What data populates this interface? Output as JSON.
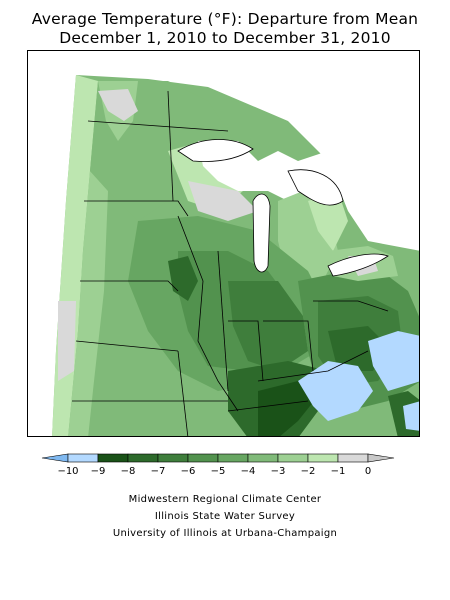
{
  "header": {
    "title_line1": "Average Temperature (°F): Departure from Mean",
    "title_line2": "December 1, 2010 to December 31, 2010"
  },
  "legend": {
    "bins": [
      {
        "value": "−10",
        "color": "#b3d9ff"
      },
      {
        "value": "−9",
        "color": "#1a5218"
      },
      {
        "value": "−8",
        "color": "#2d6a2b"
      },
      {
        "value": "−7",
        "color": "#3f7e3c"
      },
      {
        "value": "−6",
        "color": "#52924e"
      },
      {
        "value": "−5",
        "color": "#67a662"
      },
      {
        "value": "−4",
        "color": "#80ba79"
      },
      {
        "value": "−3",
        "color": "#9dd093"
      },
      {
        "value": "−2",
        "color": "#bde6b0"
      },
      {
        "value": "−1",
        "color": "#d9d9d9"
      },
      {
        "value": "0",
        "color": "#ffffff"
      }
    ],
    "low_cap_color": "#7fb8f0",
    "high_cap_color": "#c8c8c8"
  },
  "credits": {
    "line1": "Midwestern Regional Climate Center",
    "line2": "Illinois State Water Survey",
    "line3": "University of Illinois at Urbana-Champaign"
  }
}
